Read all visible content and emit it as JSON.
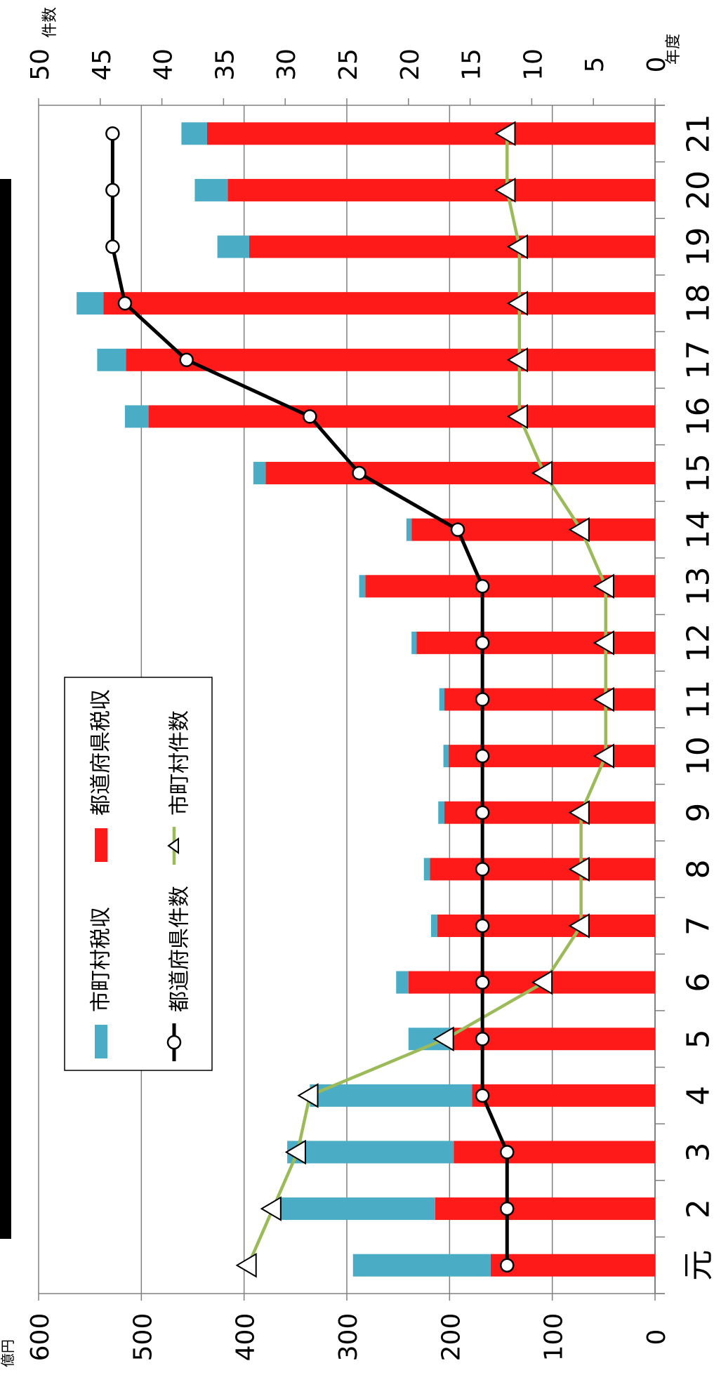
{
  "chart_data": {
    "type": "bar",
    "orientation": "rotated-90-clockwise",
    "stacked": true,
    "categories": [
      "元",
      "2",
      "3",
      "4",
      "5",
      "6",
      "7",
      "8",
      "9",
      "10",
      "11",
      "12",
      "13",
      "14",
      "15",
      "16",
      "17",
      "18",
      "19",
      "20",
      "21"
    ],
    "x_unit_label": "年度",
    "y_left": {
      "unit_label": "億円",
      "range": [
        0,
        600
      ],
      "ticks": [
        0,
        100,
        200,
        300,
        400,
        500,
        600
      ]
    },
    "y_right": {
      "unit_label": "件数",
      "range": [
        0,
        50
      ],
      "ticks": [
        0,
        5,
        10,
        15,
        20,
        25,
        30,
        35,
        40,
        45,
        50
      ]
    },
    "grid": true,
    "legend_position": "top-left",
    "series": [
      {
        "name": "都道府県税収",
        "kind": "bar",
        "axis": "left",
        "color": "#ff1a1a",
        "values": [
          160,
          214,
          196,
          178,
          198,
          240,
          212,
          219,
          205,
          201,
          205,
          232,
          282,
          237,
          379,
          493,
          515,
          537,
          395,
          416,
          436
        ]
      },
      {
        "name": "市町村税収",
        "kind": "bar",
        "axis": "left",
        "color": "#4bacc6",
        "values": [
          134,
          150,
          162,
          158,
          42,
          12,
          6,
          6,
          6,
          5,
          5,
          5,
          6,
          5,
          12,
          23,
          28,
          26,
          31,
          32,
          25
        ]
      },
      {
        "name": "都道府県件数",
        "kind": "line",
        "axis": "right",
        "color": "#000000",
        "marker": "circle",
        "values": [
          12,
          12,
          12,
          14,
          14,
          14,
          14,
          14,
          14,
          14,
          14,
          14,
          14,
          16,
          24,
          28,
          38,
          43,
          44,
          44,
          44
        ]
      },
      {
        "name": "市町村件数",
        "kind": "line",
        "axis": "right",
        "color": "#9bbb59",
        "marker": "triangle",
        "values": [
          33,
          31,
          29,
          28,
          17,
          9,
          6,
          6,
          6,
          4,
          4,
          4,
          4,
          6,
          9,
          11,
          11,
          11,
          11,
          12,
          12
        ]
      }
    ]
  }
}
